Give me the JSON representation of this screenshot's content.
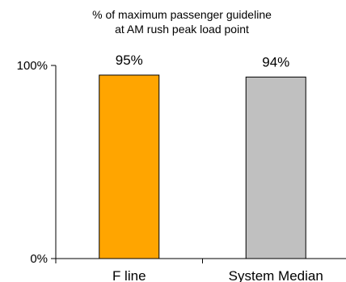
{
  "chart_data": {
    "type": "bar",
    "title_lines": [
      "% of maximum passenger guideline",
      "at AM rush peak load point"
    ],
    "categories": [
      "F line",
      "System Median"
    ],
    "values": [
      95,
      94
    ],
    "data_labels": [
      "95%",
      "94%"
    ],
    "colors": [
      "#FFA500",
      "#C0C0C0"
    ],
    "ylim": [
      0,
      100
    ],
    "y_ticks": [
      {
        "value": 0,
        "label": "0%"
      },
      {
        "value": 100,
        "label": "100%"
      }
    ],
    "grid": false,
    "legend": "none"
  }
}
